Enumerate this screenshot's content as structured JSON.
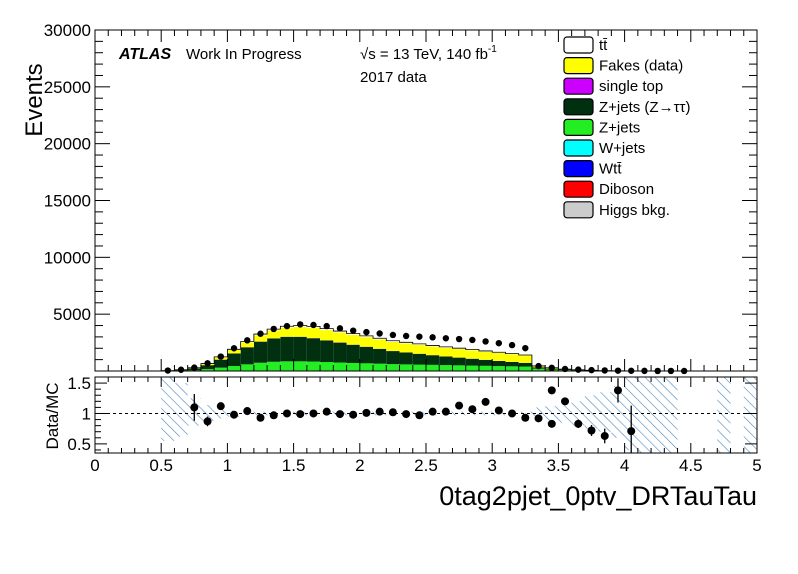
{
  "labels": {
    "atlas": "ATLAS",
    "status": "Work In Progress",
    "energy": "√s = 13 TeV, 140 fb",
    "energy_sup": "-1",
    "dataset": "2017 data"
  },
  "chart_data": [
    {
      "type": "area",
      "panel": "main",
      "ylabel": "Events",
      "xlim": [
        0,
        5
      ],
      "ylim": [
        0,
        30000
      ],
      "y_ticks": [
        5000,
        10000,
        15000,
        20000,
        25000,
        30000
      ],
      "bin_width": 0.1,
      "bin_edges_start": 0.5,
      "stack_order": [
        "Higgs bkg.",
        "Diboson",
        "Wtt̄",
        "W+jets",
        "Z+jets",
        "Z+jets (Z→ττ)",
        "single top",
        "Fakes (data)",
        "tt̄"
      ],
      "series": [
        {
          "name": "tt̄",
          "color": "#ffffff",
          "values": [
            0,
            0,
            5,
            20,
            40,
            60,
            80,
            100,
            110,
            120,
            125,
            130,
            130,
            125,
            120,
            115,
            110,
            100,
            95,
            90,
            85,
            80,
            75,
            70,
            65,
            60,
            50,
            40,
            20,
            10,
            5,
            3,
            2,
            1,
            0,
            0,
            0,
            0,
            0,
            0
          ]
        },
        {
          "name": "Fakes (data)",
          "color": "#ffff00",
          "values": [
            10,
            30,
            60,
            120,
            200,
            300,
            420,
            560,
            700,
            800,
            860,
            900,
            900,
            880,
            860,
            840,
            820,
            800,
            790,
            780,
            770,
            760,
            750,
            740,
            720,
            700,
            680,
            650,
            100,
            60,
            30,
            20,
            10,
            5,
            3,
            2,
            1,
            0,
            0,
            0
          ]
        },
        {
          "name": "single top",
          "color": "#cc00ff",
          "values": [
            0,
            0,
            2,
            5,
            8,
            10,
            12,
            14,
            15,
            15,
            15,
            14,
            13,
            12,
            11,
            10,
            9,
            8,
            8,
            7,
            7,
            6,
            6,
            5,
            5,
            4,
            4,
            3,
            1,
            0,
            0,
            0,
            0,
            0,
            0,
            0,
            0,
            0,
            0,
            0
          ]
        },
        {
          "name": "Z+jets (Z→ττ)",
          "color": "#00300f",
          "values": [
            20,
            60,
            150,
            350,
            700,
            1100,
            1500,
            1850,
            2050,
            2150,
            2150,
            2050,
            1900,
            1750,
            1600,
            1450,
            1300,
            1150,
            1050,
            950,
            850,
            760,
            680,
            600,
            520,
            450,
            380,
            320,
            120,
            80,
            50,
            30,
            20,
            10,
            5,
            3,
            2,
            1,
            1,
            0
          ]
        },
        {
          "name": "Z+jets",
          "color": "#22ee22",
          "values": [
            5,
            20,
            60,
            150,
            280,
            420,
            560,
            700,
            780,
            820,
            820,
            800,
            760,
            720,
            680,
            650,
            620,
            580,
            560,
            540,
            520,
            500,
            480,
            460,
            440,
            420,
            400,
            380,
            200,
            130,
            80,
            50,
            30,
            15,
            8,
            5,
            3,
            2,
            1,
            0
          ]
        },
        {
          "name": "W+jets",
          "color": "#00ffff",
          "values": [
            0,
            0,
            1,
            2,
            3,
            5,
            6,
            7,
            8,
            8,
            8,
            8,
            7,
            7,
            6,
            6,
            6,
            5,
            5,
            5,
            5,
            4,
            4,
            4,
            4,
            3,
            3,
            3,
            1,
            1,
            0,
            0,
            0,
            0,
            0,
            0,
            0,
            0,
            0,
            0
          ]
        },
        {
          "name": "Wtt̄",
          "color": "#0000ff",
          "values": [
            0,
            0,
            0,
            1,
            1,
            1,
            2,
            2,
            2,
            2,
            2,
            2,
            2,
            2,
            2,
            2,
            2,
            2,
            1,
            1,
            1,
            1,
            1,
            1,
            1,
            1,
            1,
            1,
            0,
            0,
            0,
            0,
            0,
            0,
            0,
            0,
            0,
            0,
            0,
            0
          ]
        },
        {
          "name": "Diboson",
          "color": "#ff0000",
          "values": [
            0,
            1,
            2,
            4,
            6,
            8,
            10,
            12,
            13,
            14,
            14,
            14,
            13,
            13,
            12,
            12,
            11,
            11,
            10,
            10,
            9,
            9,
            8,
            8,
            7,
            7,
            6,
            6,
            3,
            2,
            1,
            1,
            0,
            0,
            0,
            0,
            0,
            0,
            0,
            0
          ]
        },
        {
          "name": "Higgs bkg.",
          "color": "#cccccc",
          "values": [
            0,
            0,
            1,
            2,
            3,
            4,
            5,
            6,
            6,
            6,
            6,
            6,
            6,
            5,
            5,
            5,
            5,
            4,
            4,
            4,
            4,
            3,
            3,
            3,
            3,
            2,
            2,
            2,
            1,
            1,
            0,
            0,
            0,
            0,
            0,
            0,
            0,
            0,
            0,
            0
          ]
        }
      ],
      "data_points": {
        "x": [
          0.55,
          0.65,
          0.75,
          0.85,
          0.95,
          1.05,
          1.15,
          1.25,
          1.35,
          1.45,
          1.55,
          1.65,
          1.75,
          1.85,
          1.95,
          2.05,
          2.15,
          2.25,
          2.35,
          2.45,
          2.55,
          2.65,
          2.75,
          2.85,
          2.95,
          3.05,
          3.15,
          3.25,
          3.35,
          3.45,
          3.55,
          3.65,
          3.75,
          3.85,
          3.95,
          4.05,
          4.15,
          4.25,
          4.35,
          4.45
        ],
        "y": [
          40,
          110,
          300,
          680,
          1270,
          2000,
          2700,
          3280,
          3700,
          3950,
          4100,
          4050,
          3950,
          3750,
          3550,
          3420,
          3300,
          3170,
          3080,
          3020,
          2960,
          2880,
          2810,
          2730,
          2600,
          2450,
          2280,
          2010,
          430,
          280,
          180,
          120,
          80,
          50,
          30,
          20,
          10,
          5,
          5,
          2
        ]
      }
    },
    {
      "type": "scatter",
      "panel": "ratio",
      "ylabel": "Data/MC",
      "xlabel": "0tag2pjet_0ptv_DRTauTau",
      "xlim": [
        0,
        5
      ],
      "ylim": [
        0.35,
        1.6
      ],
      "y_ticks": [
        0.5,
        1,
        1.5
      ],
      "x_ticks": [
        0,
        0.5,
        1,
        1.5,
        2,
        2.5,
        3,
        3.5,
        4,
        4.5,
        5
      ],
      "reference_line": 1,
      "points": [
        {
          "x": 0.75,
          "y": 1.1,
          "err": 0.22
        },
        {
          "x": 0.85,
          "y": 0.87,
          "err": 0.08
        },
        {
          "x": 0.95,
          "y": 1.12,
          "err": 0.05
        },
        {
          "x": 1.05,
          "y": 0.98,
          "err": 0.04
        },
        {
          "x": 1.15,
          "y": 1.04,
          "err": 0.03
        },
        {
          "x": 1.25,
          "y": 0.93,
          "err": 0.03
        },
        {
          "x": 1.35,
          "y": 0.97,
          "err": 0.03
        },
        {
          "x": 1.45,
          "y": 1.0,
          "err": 0.03
        },
        {
          "x": 1.55,
          "y": 0.99,
          "err": 0.03
        },
        {
          "x": 1.65,
          "y": 1.0,
          "err": 0.03
        },
        {
          "x": 1.75,
          "y": 1.03,
          "err": 0.03
        },
        {
          "x": 1.85,
          "y": 0.99,
          "err": 0.03
        },
        {
          "x": 1.95,
          "y": 0.98,
          "err": 0.03
        },
        {
          "x": 2.05,
          "y": 1.01,
          "err": 0.03
        },
        {
          "x": 2.15,
          "y": 1.03,
          "err": 0.03
        },
        {
          "x": 2.25,
          "y": 1.02,
          "err": 0.03
        },
        {
          "x": 2.35,
          "y": 0.99,
          "err": 0.03
        },
        {
          "x": 2.45,
          "y": 0.97,
          "err": 0.03
        },
        {
          "x": 2.55,
          "y": 1.03,
          "err": 0.03
        },
        {
          "x": 2.65,
          "y": 1.03,
          "err": 0.03
        },
        {
          "x": 2.75,
          "y": 1.13,
          "err": 0.03
        },
        {
          "x": 2.85,
          "y": 1.07,
          "err": 0.03
        },
        {
          "x": 2.95,
          "y": 1.19,
          "err": 0.03
        },
        {
          "x": 3.05,
          "y": 1.05,
          "err": 0.03
        },
        {
          "x": 3.15,
          "y": 1.0,
          "err": 0.03
        },
        {
          "x": 3.25,
          "y": 0.93,
          "err": 0.03
        },
        {
          "x": 3.35,
          "y": 0.92,
          "err": 0.03
        },
        {
          "x": 3.45,
          "y": 0.83,
          "err": 0.03
        },
        {
          "x": 3.45,
          "y": 1.38,
          "err": 0.05
        },
        {
          "x": 3.55,
          "y": 1.2,
          "err": 0.06
        },
        {
          "x": 3.65,
          "y": 0.83,
          "err": 0.07
        },
        {
          "x": 3.75,
          "y": 0.72,
          "err": 0.09
        },
        {
          "x": 3.85,
          "y": 0.63,
          "err": 0.12
        },
        {
          "x": 3.95,
          "y": 1.38,
          "err": 0.2
        },
        {
          "x": 4.05,
          "y": 0.71,
          "err": 0.42
        }
      ],
      "uncertainty_band": [
        {
          "x0": 0.5,
          "x1": 0.6,
          "lo": 0.55,
          "hi": 1.6
        },
        {
          "x0": 0.6,
          "x1": 0.7,
          "lo": 0.62,
          "hi": 1.5
        },
        {
          "x0": 0.7,
          "x1": 0.8,
          "lo": 0.8,
          "hi": 1.25
        },
        {
          "x0": 0.8,
          "x1": 0.9,
          "lo": 0.88,
          "hi": 1.14
        },
        {
          "x0": 0.9,
          "x1": 1.0,
          "lo": 0.92,
          "hi": 1.08
        },
        {
          "x0": 1.0,
          "x1": 1.1,
          "lo": 0.95,
          "hi": 1.05
        },
        {
          "x0": 1.1,
          "x1": 3.3,
          "lo": 0.97,
          "hi": 1.03
        },
        {
          "x0": 3.3,
          "x1": 3.4,
          "lo": 0.9,
          "hi": 1.1
        },
        {
          "x0": 3.4,
          "x1": 3.5,
          "lo": 0.88,
          "hi": 1.12
        },
        {
          "x0": 3.5,
          "x1": 3.6,
          "lo": 0.85,
          "hi": 1.15
        },
        {
          "x0": 3.6,
          "x1": 3.7,
          "lo": 0.8,
          "hi": 1.2
        },
        {
          "x0": 3.7,
          "x1": 3.8,
          "lo": 0.75,
          "hi": 1.3
        },
        {
          "x0": 3.8,
          "x1": 3.9,
          "lo": 0.7,
          "hi": 1.35
        },
        {
          "x0": 3.9,
          "x1": 4.0,
          "lo": 0.6,
          "hi": 1.45
        },
        {
          "x0": 4.0,
          "x1": 4.1,
          "lo": 0.4,
          "hi": 1.6
        },
        {
          "x0": 4.1,
          "x1": 4.4,
          "lo": 0.35,
          "hi": 1.6
        },
        {
          "x0": 4.7,
          "x1": 4.8,
          "lo": 0.35,
          "hi": 1.6
        },
        {
          "x0": 4.9,
          "x1": 5.0,
          "lo": 0.35,
          "hi": 1.6
        }
      ]
    }
  ]
}
